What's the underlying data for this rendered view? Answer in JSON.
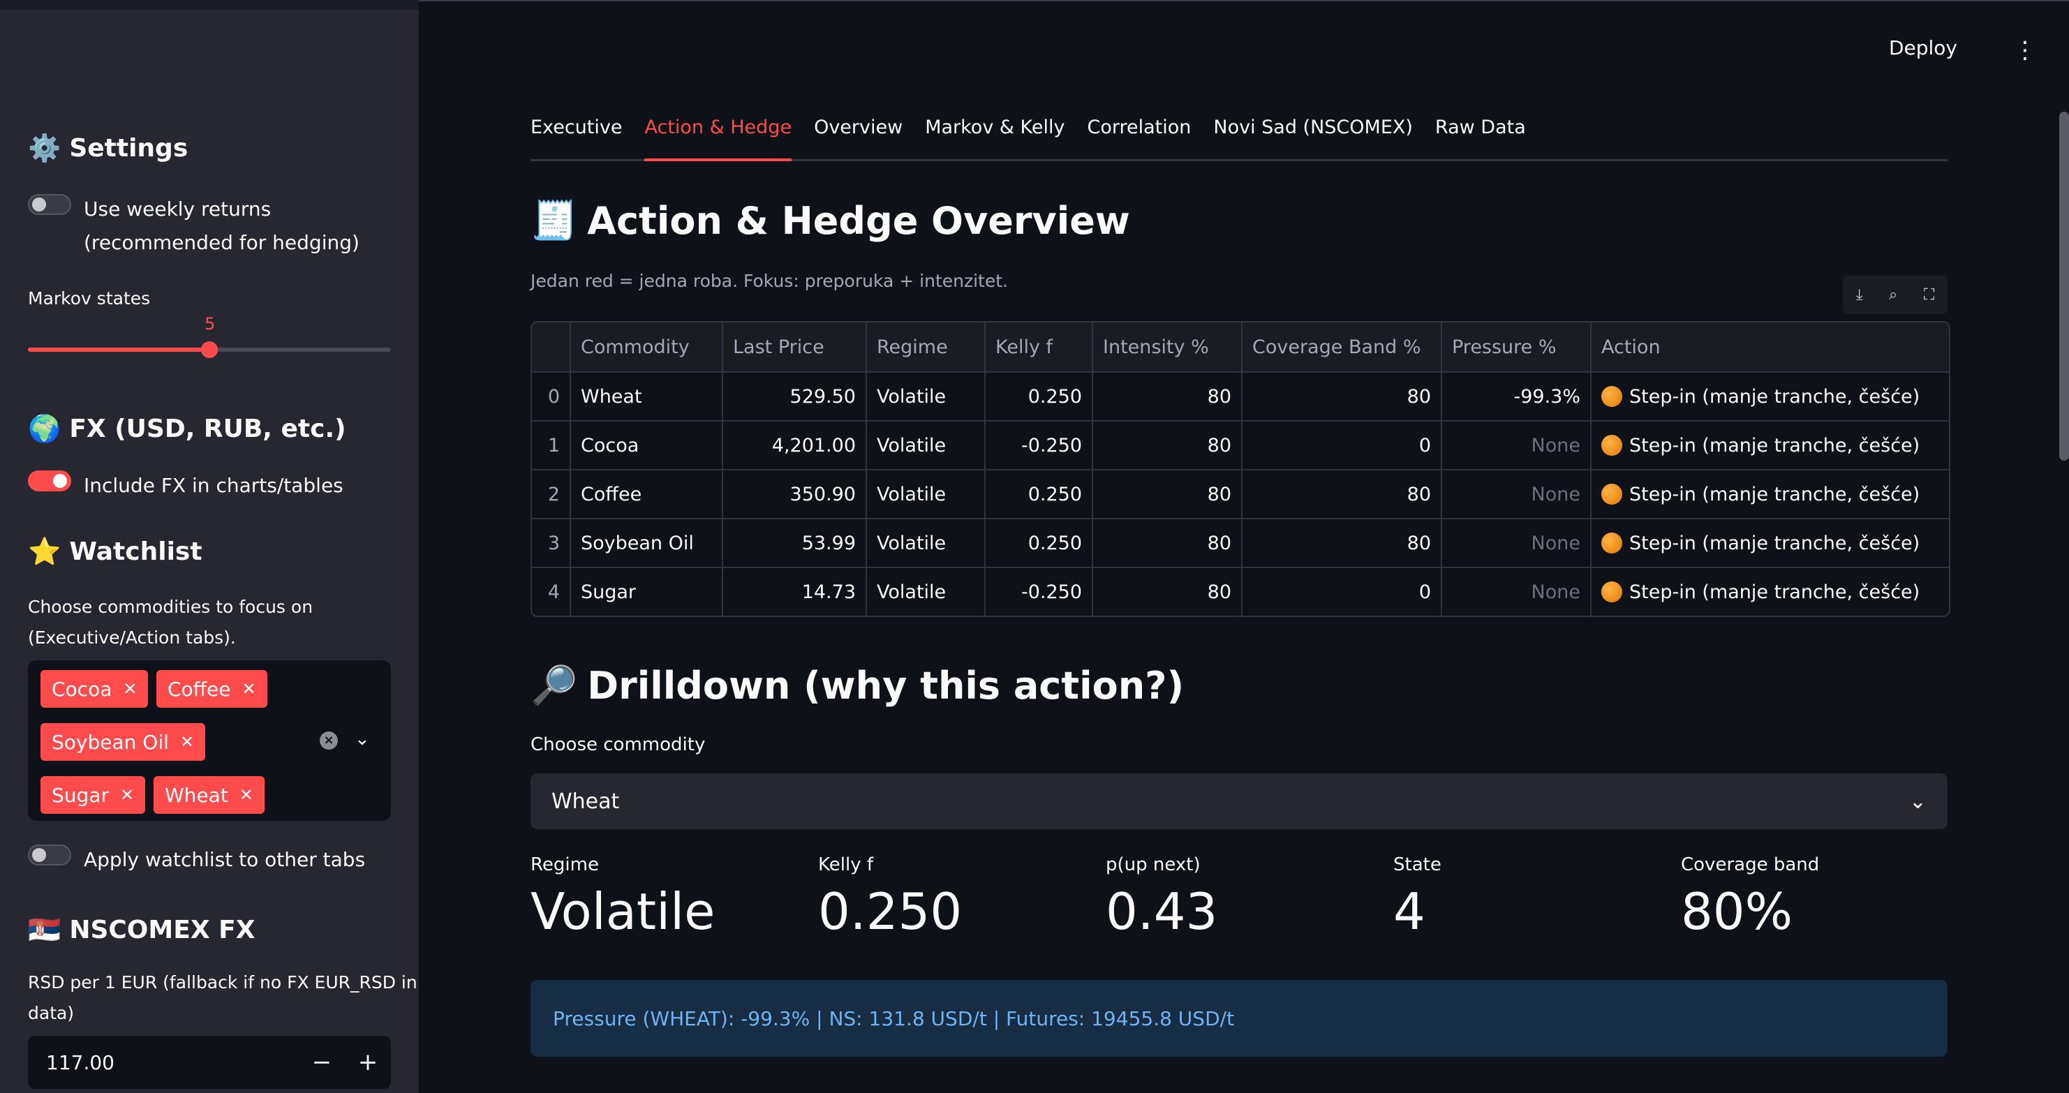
{
  "sidebar": {
    "settings_title": "Settings",
    "weekly_returns_label": "Use weekly returns (recommended for hedging)",
    "weekly_returns_on": false,
    "markov_states_label": "Markov states",
    "markov_states_value": "5",
    "markov_states_fraction": 0.5,
    "fx_title": "FX (USD, RUB, etc.)",
    "include_fx_label": "Include FX in charts/tables",
    "include_fx_on": true,
    "watchlist_title": "Watchlist",
    "watchlist_help_line1": "Choose commodities to focus on",
    "watchlist_help_line2": "(Executive/Action tabs).",
    "watchlist_chips": [
      "Cocoa",
      "Coffee",
      "Soybean Oil",
      "Sugar",
      "Wheat"
    ],
    "apply_watchlist_label": "Apply watchlist to other tabs",
    "apply_watchlist_on": false,
    "nscomex_title": "NSCOMEX FX",
    "rsd_label_line1": "RSD per 1 EUR (fallback if no FX EUR_RSD in",
    "rsd_label_line2": "data)",
    "rsd_value": "117.00",
    "minus_label": "−",
    "plus_label": "+"
  },
  "header": {
    "deploy_label": "Deploy",
    "menu_label": "⋮"
  },
  "tabs": [
    {
      "label": "Executive"
    },
    {
      "label": "Action & Hedge"
    },
    {
      "label": "Overview"
    },
    {
      "label": "Markov & Kelly"
    },
    {
      "label": "Correlation"
    },
    {
      "label": "Novi Sad (NSCOMEX)"
    },
    {
      "label": "Raw Data"
    }
  ],
  "active_tab_index": 1,
  "action_section": {
    "title": "Action & Hedge Overview",
    "caption": "Jedan red = jedna roba. Fokus: preporuka + intenzitet."
  },
  "table": {
    "columns": [
      "",
      "Commodity",
      "Last Price",
      "Regime",
      "Kelly f",
      "Intensity %",
      "Coverage Band %",
      "Pressure %",
      "Action"
    ],
    "rows": [
      [
        "0",
        "Wheat",
        "529.50",
        "Volatile",
        "0.250",
        "80",
        "80",
        "-99.3%",
        "Step-in (manje tranche, češće)"
      ],
      [
        "1",
        "Cocoa",
        "4,201.00",
        "Volatile",
        "-0.250",
        "80",
        "0",
        "None",
        "Step-in (manje tranche, češće)"
      ],
      [
        "2",
        "Coffee",
        "350.90",
        "Volatile",
        "0.250",
        "80",
        "80",
        "None",
        "Step-in (manje tranche, češće)"
      ],
      [
        "3",
        "Soybean Oil",
        "53.99",
        "Volatile",
        "0.250",
        "80",
        "80",
        "None",
        "Step-in (manje tranche, češće)"
      ],
      [
        "4",
        "Sugar",
        "14.73",
        "Volatile",
        "-0.250",
        "80",
        "0",
        "None",
        "Step-in (manje tranche, češće)"
      ]
    ]
  },
  "drilldown": {
    "title": "Drilldown (why this action?)",
    "choose_label": "Choose commodity",
    "selected": "Wheat",
    "metrics": [
      {
        "label": "Regime",
        "value": "Volatile"
      },
      {
        "label": "Kelly f",
        "value": "0.250"
      },
      {
        "label": "p(up next)",
        "value": "0.43"
      },
      {
        "label": "State",
        "value": "4"
      },
      {
        "label": "Coverage band",
        "value": "80%"
      }
    ],
    "info": "Pressure (WHEAT): -99.3% | NS: 131.8 USD/t | Futures: 19455.8 USD/t"
  },
  "colors": {
    "accent": "#ff4b4b",
    "background": "#0e1117",
    "sidebar": "#262730",
    "info_bg": "#172d43",
    "info_text": "#6cb4f5"
  }
}
